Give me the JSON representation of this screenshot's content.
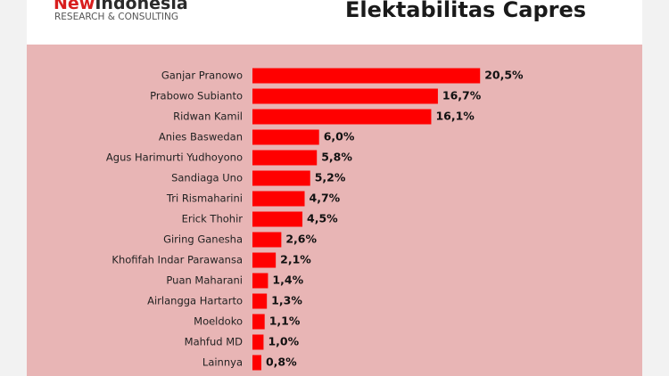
{
  "header": {
    "logo": [
      "New",
      "Indonesia"
    ],
    "tagline": "RESEARCH & CONSULTING"
  },
  "chart_data": {
    "type": "hbar",
    "title": "Elektabilitas Capres",
    "color": "#ff0000",
    "categories": [
      "Ganjar Pranowo",
      "Prabowo Subianto",
      "Ridwan Kamil",
      "Anies Baswedan",
      "Agus Harimurti Yudhoyono",
      "Sandiaga Uno",
      "Tri Rismaharini",
      "Erick Thohir",
      "Giring Ganesha",
      "Khofifah Indar Parawansa",
      "Puan Maharani",
      "Airlangga Hartarto",
      "Moeldoko",
      "Mahfud MD",
      "Lainnya"
    ],
    "values": [
      20.5,
      16.7,
      16.1,
      6.0,
      5.8,
      5.2,
      4.7,
      4.5,
      2.6,
      2.1,
      1.4,
      1.3,
      1.1,
      1.0,
      0.8
    ],
    "value_labels": [
      "20,5%",
      "16,7%",
      "16,1%",
      "6,0%",
      "5,8%",
      "5,2%",
      "4,7%",
      "4,5%",
      "2,6%",
      "2,1%",
      "1,4%",
      "1,3%",
      "1,1%",
      "1,0%",
      "0,8%"
    ]
  }
}
